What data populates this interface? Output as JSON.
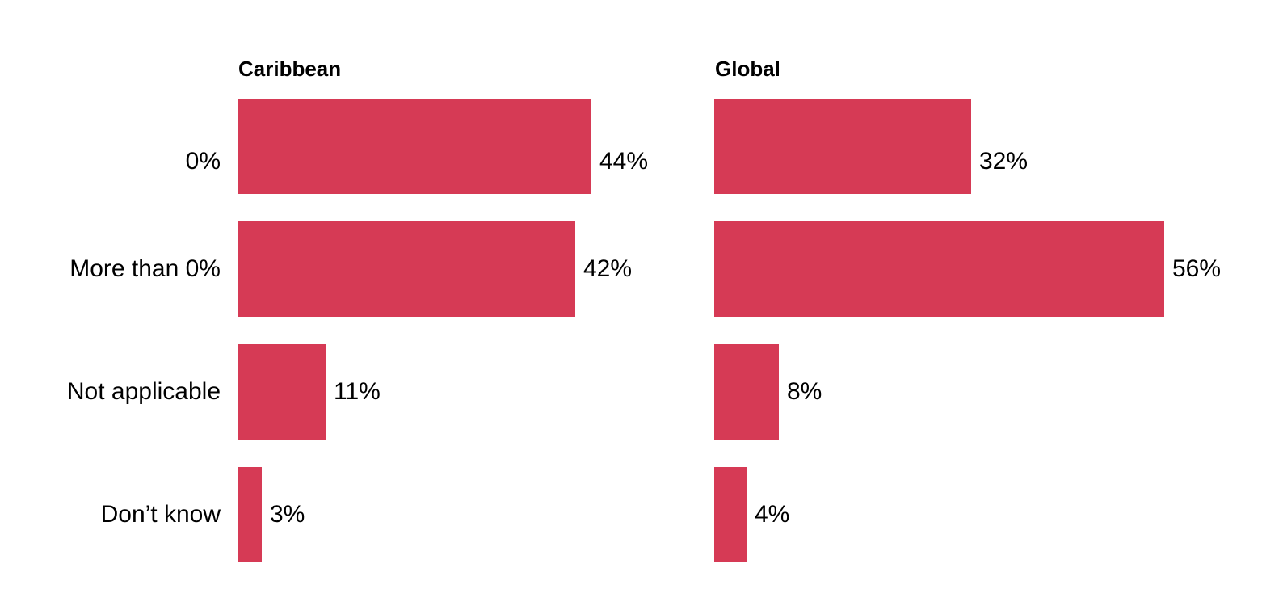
{
  "chart_data": {
    "type": "bar",
    "orientation": "horizontal",
    "categories": [
      "0%",
      "More than 0%",
      "Not applicable",
      "Don’t know"
    ],
    "series": [
      {
        "name": "Caribbean",
        "values": [
          44,
          42,
          11,
          3
        ]
      },
      {
        "name": "Global",
        "values": [
          32,
          56,
          8,
          4
        ]
      }
    ],
    "value_suffix": "%",
    "value_label_position": "outside-end",
    "category_label_position": "left",
    "xlim": [
      0,
      56
    ],
    "grid": false,
    "legend_position": "none",
    "colors": {
      "bar": "#d63a55",
      "text": "#000000",
      "background": "#ffffff"
    }
  }
}
